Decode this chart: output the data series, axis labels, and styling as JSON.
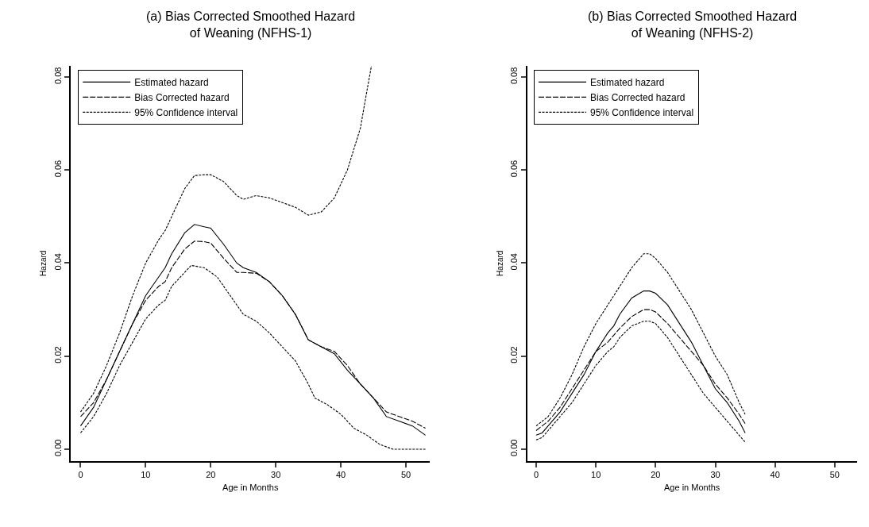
{
  "chart_data": [
    {
      "type": "line",
      "title": "(a) Bias Corrected Smoothed Hazard\nof Weaning (NFHS-1)",
      "xlabel": "Age in Months",
      "ylabel": "Hazard",
      "xlim": [
        -1.5,
        53.7
      ],
      "xticks": [
        0,
        10,
        20,
        30,
        40,
        50
      ],
      "ylim": [
        -0.0025,
        0.0824
      ],
      "yticks": [
        {
          "value": 0,
          "label": "0.00"
        },
        {
          "value": 0.02,
          "label": "0.02"
        },
        {
          "value": 0.04,
          "label": "0.04"
        },
        {
          "value": 0.06,
          "label": "0.06"
        },
        {
          "value": 0.08,
          "label": "0.08"
        }
      ],
      "legend": "top left",
      "marker": "none",
      "series": [
        {
          "name": "Estimated hazard",
          "color": "#000000",
          "line_style": "solid",
          "x": [
            0,
            2,
            4,
            6,
            8,
            10,
            12,
            13,
            14,
            16,
            17.5,
            19,
            20,
            22,
            24,
            25,
            27,
            29,
            31,
            33,
            35,
            37,
            39,
            41,
            43,
            45,
            47,
            49,
            51,
            53
          ],
          "values": [
            0.005,
            0.009,
            0.015,
            0.021,
            0.027,
            0.033,
            0.037,
            0.039,
            0.042,
            0.0465,
            0.0483,
            0.0478,
            0.0475,
            0.044,
            0.04,
            0.039,
            0.038,
            0.036,
            0.033,
            0.029,
            0.0235,
            0.022,
            0.0205,
            0.017,
            0.014,
            0.011,
            0.007,
            0.006,
            0.005,
            0.003
          ]
        },
        {
          "name": "Bias Corrected hazard",
          "color": "#000000",
          "line_style": "dashed",
          "x": [
            0,
            2,
            4,
            6,
            8,
            10,
            12,
            13,
            14,
            16,
            17.5,
            19,
            20,
            22,
            24,
            25,
            27,
            29,
            31,
            33,
            35,
            37,
            39,
            41,
            43,
            45,
            47,
            49,
            51,
            53
          ],
          "values": [
            0.007,
            0.01,
            0.015,
            0.021,
            0.027,
            0.032,
            0.035,
            0.036,
            0.039,
            0.043,
            0.0447,
            0.0446,
            0.0443,
            0.041,
            0.038,
            0.038,
            0.0378,
            0.036,
            0.033,
            0.029,
            0.0235,
            0.022,
            0.021,
            0.018,
            0.014,
            0.011,
            0.008,
            0.007,
            0.006,
            0.0045
          ]
        },
        {
          "name": "95% Confidence interval",
          "color": "#000000",
          "line_style": "dotted",
          "x": [
            0,
            2,
            4,
            6,
            8,
            10,
            12,
            13,
            14,
            16,
            17.5,
            19,
            20,
            22,
            24,
            25,
            27,
            29,
            31,
            33,
            35,
            37,
            39,
            41,
            43,
            44,
            44.7
          ],
          "values": [
            0.008,
            0.012,
            0.018,
            0.025,
            0.033,
            0.04,
            0.045,
            0.047,
            0.05,
            0.056,
            0.0588,
            0.059,
            0.059,
            0.0575,
            0.0545,
            0.0537,
            0.0545,
            0.054,
            0.053,
            0.052,
            0.0503,
            0.051,
            0.054,
            0.06,
            0.069,
            0.077,
            0.0824
          ]
        },
        {
          "color": "#000000",
          "line_style": "dotted",
          "x": [
            0,
            2,
            4,
            6,
            8,
            10,
            12,
            13,
            14,
            16,
            17,
            19,
            21,
            23,
            25,
            27,
            29,
            31,
            33,
            35,
            36,
            38,
            40,
            42,
            44,
            46,
            48,
            50,
            53
          ],
          "values": [
            0.0035,
            0.007,
            0.012,
            0.018,
            0.023,
            0.028,
            0.031,
            0.032,
            0.035,
            0.038,
            0.0395,
            0.039,
            0.037,
            0.033,
            0.029,
            0.0275,
            0.025,
            0.022,
            0.019,
            0.014,
            0.011,
            0.0095,
            0.0075,
            0.0045,
            0.003,
            0.001,
            0.0,
            0.0,
            0.0
          ]
        }
      ]
    },
    {
      "type": "line",
      "title": "(b) Bias Corrected Smoothed Hazard\nof Weaning (NFHS-2)",
      "xlabel": "Age in Months",
      "ylabel": "Hazard",
      "xlim": [
        -1.5,
        53.7
      ],
      "xticks": [
        0,
        10,
        20,
        30,
        40,
        50
      ],
      "ylim": [
        -0.0025,
        0.0824
      ],
      "yticks": [
        {
          "value": 0,
          "label": "0.00"
        },
        {
          "value": 0.02,
          "label": "0.02"
        },
        {
          "value": 0.04,
          "label": "0.04"
        },
        {
          "value": 0.06,
          "label": "0.06"
        },
        {
          "value": 0.08,
          "label": "0.08"
        }
      ],
      "legend": "top left",
      "marker": "none",
      "series": [
        {
          "name": "Estimated hazard",
          "color": "#000000",
          "line_style": "solid",
          "x": [
            0,
            1,
            2,
            4,
            6,
            8,
            10,
            12,
            13,
            14,
            16,
            18,
            19,
            20,
            22,
            24,
            26,
            28,
            30,
            32,
            34,
            35
          ],
          "values": [
            0.003,
            0.0035,
            0.005,
            0.008,
            0.012,
            0.016,
            0.021,
            0.025,
            0.0265,
            0.029,
            0.0325,
            0.034,
            0.034,
            0.0335,
            0.031,
            0.027,
            0.023,
            0.018,
            0.013,
            0.01,
            0.006,
            0.0035
          ]
        },
        {
          "name": "Bias Corrected hazard",
          "color": "#000000",
          "line_style": "dashed",
          "x": [
            0,
            1,
            2,
            4,
            6,
            8,
            10,
            12,
            13,
            14,
            16,
            18,
            19,
            20,
            22,
            24,
            26,
            28,
            30,
            32,
            34,
            35
          ],
          "values": [
            0.004,
            0.005,
            0.006,
            0.009,
            0.013,
            0.017,
            0.021,
            0.023,
            0.0245,
            0.026,
            0.0285,
            0.03,
            0.03,
            0.0295,
            0.027,
            0.024,
            0.021,
            0.018,
            0.014,
            0.011,
            0.0075,
            0.0055
          ]
        },
        {
          "name": "95% Confidence interval",
          "color": "#000000",
          "line_style": "dotted",
          "x": [
            0,
            2,
            4,
            6,
            8,
            10,
            12,
            13,
            14,
            16,
            18,
            19,
            20,
            22,
            24,
            26,
            28,
            30,
            32,
            34,
            35
          ],
          "values": [
            0.005,
            0.007,
            0.011,
            0.016,
            0.022,
            0.027,
            0.031,
            0.033,
            0.035,
            0.039,
            0.042,
            0.042,
            0.041,
            0.038,
            0.034,
            0.03,
            0.025,
            0.02,
            0.016,
            0.01,
            0.0075
          ]
        },
        {
          "color": "#000000",
          "line_style": "dotted",
          "x": [
            0,
            1,
            2,
            4,
            6,
            8,
            10,
            12,
            13,
            14,
            16,
            18,
            19,
            20,
            22,
            24,
            26,
            28,
            30,
            32,
            34,
            35
          ],
          "values": [
            0.002,
            0.0025,
            0.004,
            0.007,
            0.01,
            0.014,
            0.018,
            0.021,
            0.022,
            0.024,
            0.0265,
            0.0275,
            0.0275,
            0.027,
            0.024,
            0.02,
            0.016,
            0.012,
            0.009,
            0.006,
            0.003,
            0.0015
          ]
        }
      ]
    }
  ]
}
